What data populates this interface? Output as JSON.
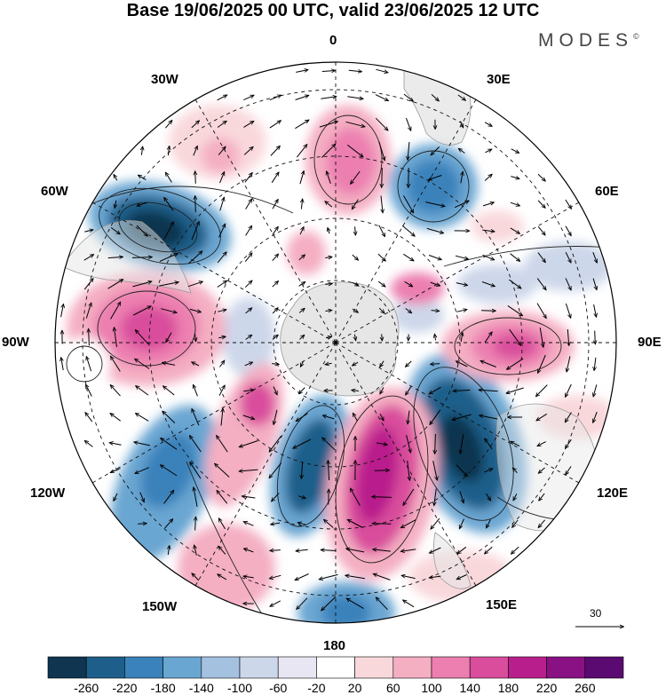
{
  "title": "Base 19/06/2025 00 UTC, valid 23/06/2025 12 UTC",
  "brand": {
    "text": "MODES",
    "mark": "©"
  },
  "longitude_labels": {
    "lon_0": "0",
    "lon_30e": "30E",
    "lon_60e": "60E",
    "lon_90e": "90E",
    "lon_120e": "120E",
    "lon_150e": "150E",
    "lon_180": "180",
    "lon_150w": "150W",
    "lon_120w": "120W",
    "lon_90w": "90W",
    "lon_60w": "60W",
    "lon_30w": "30W"
  },
  "reference_vector": {
    "label": "30"
  },
  "colorbar": {
    "colors": [
      "#0f3550",
      "#1d5f8a",
      "#3a82bb",
      "#6aa6d2",
      "#a4c1e0",
      "#cdd7ea",
      "#e8e6f2",
      "#ffffff",
      "#f9d8dc",
      "#f4afc3",
      "#ec7fb0",
      "#d94d9c",
      "#b91f8c",
      "#8a1184",
      "#5b0a72"
    ],
    "labels": [
      "-260",
      "-220",
      "-180",
      "-140",
      "-100",
      "-60",
      "-20",
      "20",
      "60",
      "100",
      "140",
      "180",
      "220",
      "260"
    ]
  },
  "map": {
    "projection": "south polar stereographic",
    "field_type": "anomaly shading with wind vectors",
    "land_color": "#e6e6e6"
  }
}
